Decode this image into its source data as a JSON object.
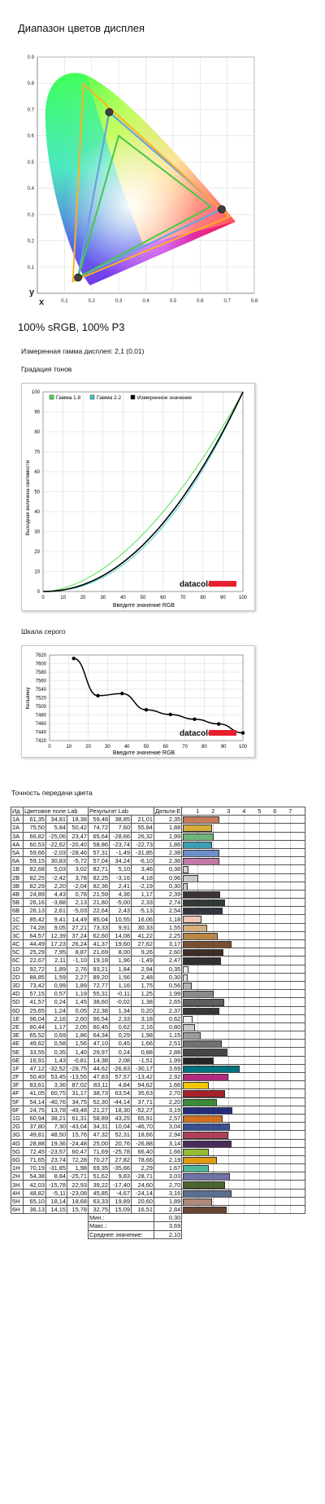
{
  "page": {
    "gamut_title": "Диапазон цветов дисплея",
    "gamut_caption": "100% sRGB, 100% P3",
    "gamma_measured": "Измеренная гамма дисплея: 2,1 (0,01)",
    "tone_title": "Градация тонов",
    "grey_title": "Шкала серого",
    "accuracy_title": "Точность передачи цвета"
  },
  "chart_data": [
    {
      "type": "scatter",
      "name": "gamut",
      "xlabel": "x",
      "ylabel": "y",
      "xlim": [
        0,
        0.8
      ],
      "ylim": [
        0,
        0.9
      ],
      "x_ticks": [
        "0.1",
        "0.2",
        "0.3",
        "0.4",
        "0.5",
        "0.6",
        "0.7",
        "0.8"
      ],
      "y_ticks": [
        "0.1",
        "0.2",
        "0.3",
        "0.4",
        "0.5",
        "0.6",
        "0.7",
        "0.8",
        "0.9"
      ],
      "triangles": [
        {
          "color": "#ff2a2a",
          "points": [
            [
              0.68,
              0.32
            ],
            [
              0.265,
              0.69
            ],
            [
              0.15,
              0.06
            ]
          ]
        },
        {
          "color": "#5fa8e8",
          "points": [
            [
              0.68,
              0.32
            ],
            [
              0.265,
              0.69
            ],
            [
              0.15,
              0.06
            ]
          ]
        },
        {
          "color": "#ffb020",
          "points": [
            [
              0.708,
              0.292
            ],
            [
              0.17,
              0.797
            ],
            [
              0.131,
              0.046
            ]
          ]
        },
        {
          "color": "#48c848",
          "points": [
            [
              0.64,
              0.33
            ],
            [
              0.3,
              0.6
            ],
            [
              0.15,
              0.06
            ]
          ]
        }
      ],
      "markers": [
        [
          0.68,
          0.32
        ],
        [
          0.265,
          0.69
        ],
        [
          0.15,
          0.06
        ]
      ]
    },
    {
      "type": "line",
      "name": "tone",
      "xlabel": "Введите значение RGB",
      "ylabel": "Выходная величина светимости",
      "xlim": [
        0,
        100
      ],
      "ylim": [
        0,
        100
      ],
      "ticks": [
        "0",
        "10",
        "20",
        "30",
        "40",
        "50",
        "60",
        "70",
        "80",
        "90",
        "100"
      ],
      "legend": [
        "Гамма 1.8",
        "Гамма 2.2",
        "Измеренное значение"
      ],
      "series": [
        {
          "name": "Гамма 1.8",
          "color": "#44dd44",
          "gamma": 1.8
        },
        {
          "name": "Гамма 2.2",
          "color": "#33cccc",
          "gamma": 2.2
        },
        {
          "name": "Измеренное значение",
          "color": "#000000",
          "gamma": 2.1
        }
      ],
      "brand": "datacolor"
    },
    {
      "type": "line",
      "name": "grey",
      "xlabel": "Введите значение RGB",
      "ylabel": "Кельвину",
      "xlim": [
        0,
        100
      ],
      "ylim": [
        7420,
        7620
      ],
      "x_ticks": [
        "0",
        "10",
        "20",
        "30",
        "40",
        "50",
        "60",
        "70",
        "80",
        "90",
        "100"
      ],
      "y_ticks": [
        "7420",
        "7440",
        "7460",
        "7480",
        "7500",
        "7520",
        "7540",
        "7560",
        "7580",
        "7600",
        "7620"
      ],
      "x": [
        12.5,
        25,
        37.5,
        50,
        62.5,
        75,
        87.5,
        100
      ],
      "y": [
        7612,
        7525,
        7530,
        7492,
        7481,
        7470,
        7459,
        7438
      ],
      "brand": "datacolor"
    }
  ],
  "accuracy": {
    "headers": [
      "Ид",
      "Цветовое поле Lab",
      "Результат Lab",
      "Дельта-E"
    ],
    "scale": [
      "1",
      "2",
      "3",
      "4",
      "5",
      "6",
      "7"
    ],
    "rows": [
      [
        "1A",
        "61,35",
        "34,81",
        "18,38",
        "59,48",
        "38,85",
        "21,01",
        "2,35",
        "#c77a5a"
      ],
      [
        "2A",
        "75,50",
        "5,84",
        "50,42",
        "74,72",
        "7,60",
        "55,84",
        "1,88",
        "#d4ac3c"
      ],
      [
        "3A",
        "66,82",
        "-25,06",
        "23,47",
        "65,64",
        "-28,66",
        "26,32",
        "1,99",
        "#6fb47a"
      ],
      [
        "4A",
        "60,53",
        "-22,62",
        "-20,40",
        "58,86",
        "-23,74",
        "-22,73",
        "1,86",
        "#3e9db4"
      ],
      [
        "5A",
        "59,66",
        "-2,03",
        "-28,46",
        "57,31",
        "-1,49",
        "-31,85",
        "2,38",
        "#6d8fc8"
      ],
      [
        "6A",
        "59,15",
        "30,83",
        "-5,72",
        "57,04",
        "34,24",
        "-6,10",
        "2,36",
        "#c478a8"
      ],
      [
        "1B",
        "82,68",
        "5,03",
        "3,02",
        "82,71",
        "5,10",
        "3,46",
        "0,38",
        "#d8cfcb"
      ],
      [
        "2B",
        "82,25",
        "-2,42",
        "3,78",
        "82,25",
        "-3,16",
        "4,18",
        "0,96",
        "#cacdc4"
      ],
      [
        "3B",
        "82,29",
        "2,20",
        "-2,04",
        "82,36",
        "2,41",
        "-2,19",
        "0,30",
        "#cfcbd0"
      ],
      [
        "4B",
        "24,89",
        "4,43",
        "0,78",
        "21,59",
        "4,36",
        "1,17",
        "2,39",
        "#3c3434"
      ],
      [
        "5B",
        "26,16",
        "-3,88",
        "2,13",
        "21,80",
        "-5,00",
        "2,33",
        "2,74",
        "#313a34"
      ],
      [
        "6B",
        "26,13",
        "2,61",
        "-5,03",
        "22,64",
        "2,43",
        "-5,13",
        "2,54",
        "#34343e"
      ],
      [
        "1C",
        "85,42",
        "9,41",
        "14,49",
        "85,04",
        "10,55",
        "16,06",
        "1,18",
        "#f1c9b2"
      ],
      [
        "2C",
        "74,28",
        "9,05",
        "27,21",
        "73,33",
        "9,91",
        "30,33",
        "1,55",
        "#d6ae80"
      ],
      [
        "3C",
        "64,57",
        "12,39",
        "37,24",
        "62,60",
        "14,08",
        "41,22",
        "2,25",
        "#b98848"
      ],
      [
        "4C",
        "44,49",
        "17,23",
        "26,24",
        "41,37",
        "19,60",
        "27,62",
        "3,17",
        "#7a4e30"
      ],
      [
        "5C",
        "25,29",
        "7,95",
        "8,87",
        "21,69",
        "8,00",
        "9,26",
        "2,60",
        "#3e2e28"
      ],
      [
        "6C",
        "22,67",
        "2,11",
        "-1,10",
        "19,18",
        "1,96",
        "-1,49",
        "2,47",
        "#302e30"
      ],
      [
        "1D",
        "92,72",
        "1,89",
        "2,76",
        "93,21",
        "1,84",
        "2,94",
        "0,35",
        "#ece9e4"
      ],
      [
        "2D",
        "88,85",
        "1,59",
        "2,27",
        "89,20",
        "1,56",
        "2,48",
        "0,30",
        "#e2dfda"
      ],
      [
        "3D",
        "73,42",
        "0,99",
        "1,89",
        "72,77",
        "1,16",
        "1,75",
        "0,56",
        "#b8b6b2"
      ],
      [
        "4D",
        "57,15",
        "0,57",
        "1,19",
        "55,31",
        "-0,11",
        "1,25",
        "1,99",
        "#8a8a88"
      ],
      [
        "5D",
        "41,57",
        "0,24",
        "1,45",
        "38,60",
        "-0,02",
        "1,38",
        "2,65",
        "#5e5e5c"
      ],
      [
        "6D",
        "25,65",
        "1,24",
        "0,05",
        "22,38",
        "1,34",
        "0,20",
        "2,37",
        "#383636"
      ],
      [
        "1E",
        "96,04",
        "2,16",
        "2,60",
        "96,54",
        "2,33",
        "3,18",
        "0,62",
        "#f8f5f1"
      ],
      [
        "2E",
        "80,44",
        "1,17",
        "2,05",
        "80,45",
        "0,62",
        "2,16",
        "0,80",
        "#cac8c4"
      ],
      [
        "3E",
        "65,52",
        "0,69",
        "1,86",
        "64,34",
        "0,29",
        "1,98",
        "1,15",
        "#9e9d9a"
      ],
      [
        "4E",
        "49,62",
        "0,58",
        "1,56",
        "47,10",
        "0,45",
        "1,66",
        "2,51",
        "#727170"
      ],
      [
        "5E",
        "33,55",
        "0,35",
        "1,40",
        "29,97",
        "0,24",
        "0,88",
        "2,88",
        "#484746"
      ],
      [
        "6E",
        "16,91",
        "1,43",
        "-0,81",
        "14,38",
        "2,08",
        "-1,51",
        "1,99",
        "#262426"
      ],
      [
        "1F",
        "47,12",
        "-32,52",
        "-28,75",
        "44,62",
        "-26,83",
        "-30,17",
        "3,69",
        "#00717f"
      ],
      [
        "2F",
        "50,49",
        "53,45",
        "-13,55",
        "47,83",
        "57,57",
        "-13,42",
        "2,92",
        "#b02a7e"
      ],
      [
        "3F",
        "83,61",
        "3,36",
        "87,02",
        "83,11",
        "4,84",
        "94,62",
        "1,66",
        "#f0c800"
      ],
      [
        "4F",
        "41,05",
        "60,75",
        "31,17",
        "38,73",
        "63,54",
        "35,63",
        "2,70",
        "#a8202a"
      ],
      [
        "5F",
        "54,14",
        "-40,76",
        "34,75",
        "52,30",
        "-44,14",
        "37,71",
        "2,20",
        "#3a8c38"
      ],
      [
        "6F",
        "24,75",
        "13,78",
        "-49,48",
        "21,27",
        "18,30",
        "-52,27",
        "3,19",
        "#242c7c"
      ],
      [
        "1G",
        "60,94",
        "38,21",
        "61,31",
        "58,89",
        "43,25",
        "65,91",
        "2,57",
        "#d4701c"
      ],
      [
        "2G",
        "37,80",
        "7,30",
        "-43,04",
        "34,31",
        "10,04",
        "-46,70",
        "3,04",
        "#3a4e94"
      ],
      [
        "3G",
        "49,81",
        "48,50",
        "15,76",
        "47,32",
        "52,31",
        "18,66",
        "2,94",
        "#b0405a"
      ],
      [
        "4G",
        "28,88",
        "19,36",
        "-24,48",
        "25,00",
        "20,76",
        "-26,88",
        "3,14",
        "#4a2c5c"
      ],
      [
        "5G",
        "72,45",
        "-23,57",
        "60,47",
        "71,69",
        "-25,78",
        "66,40",
        "1,66",
        "#92bc34"
      ],
      [
        "6G",
        "71,65",
        "23,74",
        "72,28",
        "70,27",
        "27,82",
        "78,66",
        "2,19",
        "#e09a10"
      ],
      [
        "1H",
        "70,19",
        "-31,85",
        "1,98",
        "69,35",
        "-35,66",
        "2,29",
        "1,67",
        "#50b89a"
      ],
      [
        "2H",
        "54,38",
        "8,84",
        "-25,71",
        "51,62",
        "9,83",
        "-28,71",
        "3,03",
        "#7072a8"
      ],
      [
        "3H",
        "42,03",
        "-15,78",
        "22,93",
        "39,22",
        "-17,40",
        "24,60",
        "2,70",
        "#4c6430"
      ],
      [
        "4H",
        "48,82",
        "-5,11",
        "-23,08",
        "45,85",
        "-4,67",
        "-24,14",
        "3,16",
        "#5a7090"
      ],
      [
        "5H",
        "65,10",
        "18,14",
        "18,68",
        "63,33",
        "19,89",
        "20,60",
        "1,89",
        "#b08a78"
      ],
      [
        "6H",
        "36,13",
        "14,15",
        "15,78",
        "32,75",
        "15,09",
        "16,51",
        "2,84",
        "#6a4632"
      ]
    ],
    "summary": [
      {
        "label": "Мин.:",
        "value": "0,30"
      },
      {
        "label": "Макс.:",
        "value": "3,69"
      },
      {
        "label": "Среднее значение:",
        "value": "2,10"
      }
    ]
  }
}
